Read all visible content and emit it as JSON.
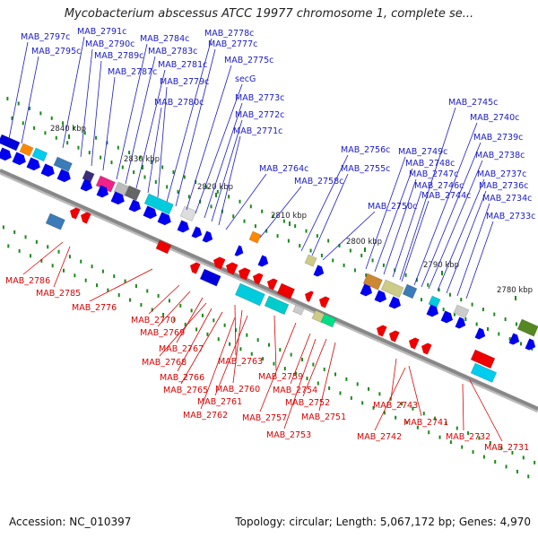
{
  "title": "Mycobacterium abscessus ATCC 19977 chromosome 1, complete se...",
  "footer": {
    "accession": "Accession: NC_010397",
    "info": "Topology: circular; Length: 5,067,172 bp; Genes: 4,970"
  },
  "colors": {
    "forward_label": "#1a1acc",
    "reverse_label": "#dd0000",
    "backbone": "#888888",
    "tick_mark": "#1a8a1a"
  },
  "ticks": [
    "2840 kbp",
    "2830 kbp",
    "2820 kbp",
    "2810 kbp",
    "2800 kbp",
    "2790 kbp",
    "2780 kbp"
  ],
  "forward_genes": [
    "MAB_2797c",
    "MAB_2795c",
    "MAB_2791c",
    "MAB_2790c",
    "MAB_2789c",
    "MAB_2787c",
    "MAB_2784c",
    "MAB_2783c",
    "MAB_2781c",
    "MAB_2780c",
    "MAB_2779c",
    "MAB_2778c",
    "MAB_2777c",
    "MAB_2775c",
    "secG",
    "MAB_2773c",
    "MAB_2772c",
    "MAB_2771c",
    "MAB_2764c",
    "MAB_2758c",
    "MAB_2756c",
    "MAB_2755c",
    "MAB_2750c",
    "MAB_2749c",
    "MAB_2748c",
    "MAB_2747c",
    "MAB_2746c",
    "MAB_2745c",
    "MAB_2744c",
    "MAB_2740c",
    "MAB_2739c",
    "MAB_2738c",
    "MAB_2737c",
    "MAB_2736c",
    "MAB_2734c",
    "MAB_2733c"
  ],
  "reverse_genes": [
    "MAB_2786",
    "MAB_2785",
    "MAB_2776",
    "MAB_2770",
    "MAB_2769",
    "MAB_2767",
    "MAB_2768",
    "MAB_2766",
    "MAB_2765",
    "MAB_2763",
    "MAB_2760",
    "MAB_2762",
    "MAB_2761",
    "MAB_2759",
    "MAB_2757",
    "MAB_2754",
    "MAB_2753",
    "MAB_2752",
    "MAB_2751",
    "MAB_2743",
    "MAB_2742",
    "MAB_2741",
    "MAB_2732",
    "MAB_2731"
  ]
}
